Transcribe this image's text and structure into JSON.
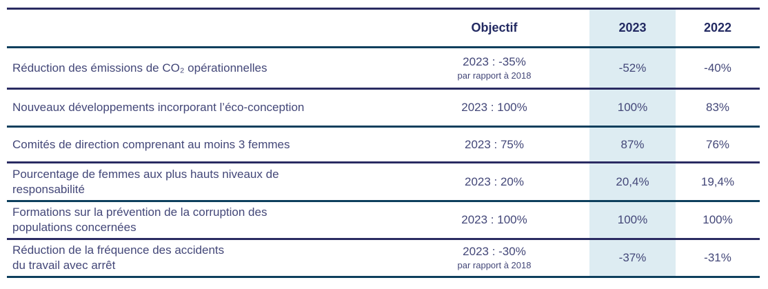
{
  "table": {
    "header": {
      "objectif": "Objectif",
      "col_2023": "2023",
      "col_2022": "2022"
    },
    "rows": [
      {
        "label": "Réduction des émissions de CO₂ opérationnelles",
        "objectif": "2023 : -35%",
        "objectif_note": "par rapport à 2018",
        "v2023": "-52%",
        "v2022": "-40%"
      },
      {
        "label": "Nouveaux développements incorporant l’éco-conception",
        "objectif": "2023 : 100%",
        "objectif_note": "",
        "v2023": "100%",
        "v2022": "83%"
      },
      {
        "label": "Comités de direction comprenant au moins 3 femmes",
        "objectif": "2023 : 75%",
        "objectif_note": "",
        "v2023": "87%",
        "v2022": "76%"
      },
      {
        "label": "Pourcentage de femmes aux plus hauts niveaux de\nresponsabilité",
        "objectif": "2023 : 20%",
        "objectif_note": "",
        "v2023": "20,4%",
        "v2022": "19,4%"
      },
      {
        "label": "Formations sur la prévention de la corruption des\npopulations concernées",
        "objectif": "2023 : 100%",
        "objectif_note": "",
        "v2023": "100%",
        "v2022": "100%"
      },
      {
        "label": "Réduction de la fréquence des accidents\ndu travail avec arrêt",
        "objectif": "2023 : -30%",
        "objectif_note": "par rapport à 2018",
        "v2023": "-37%",
        "v2022": "-31%"
      }
    ]
  },
  "colors": {
    "line_navy": "#2a2b62",
    "line_teal": "#0d3f5d",
    "highlight_column_bg": "#ddecf2",
    "header_text": "#232a62",
    "body_text": "#434778"
  }
}
